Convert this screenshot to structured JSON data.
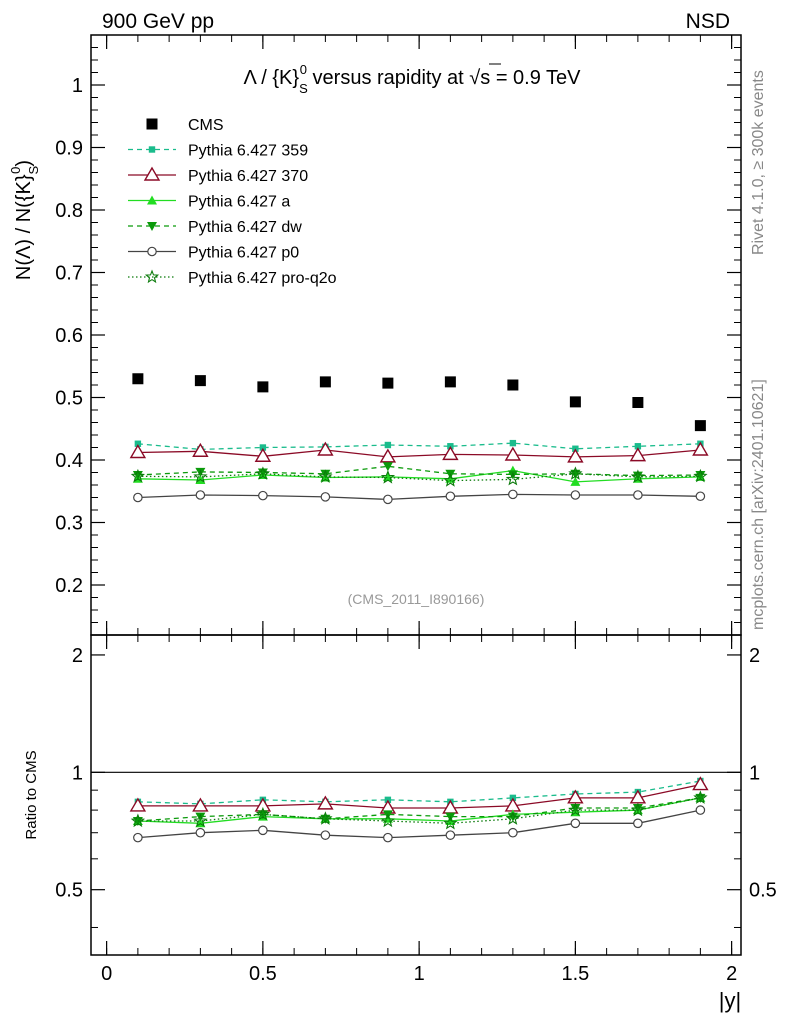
{
  "chart_data": {
    "type": "scatter",
    "header_left": "900 GeV pp",
    "header_right": "NSD",
    "title": "Λ / {K}S0 versus rapidity at √s = 0.9 TeV",
    "title_parts": {
      "pre": "Λ / {K}",
      "sub": "S",
      "sup": "0",
      "mid": " versus rapidity at ",
      "sqrt": "√",
      "s": "s",
      "post": " = 0.9 TeV"
    },
    "ylabel_parts": {
      "pre": "N(Λ)  /  N({K}",
      "sub": "S",
      "sup": "0",
      "post": ")"
    },
    "ratio_ylabel": "Ratio to CMS",
    "xlabel": "|y|",
    "analysis_tag": "(CMS_2011_I890166)",
    "side_label_top": "Rivet 4.1.0, ≥ 300k events",
    "side_label_bottom": "mcplots.cern.ch [arXiv:2401.10621]",
    "xlim": [
      -0.05,
      2.03
    ],
    "ylim": [
      0.12,
      1.08
    ],
    "ratio_ylim": [
      0.34,
      2.25
    ],
    "x_ticks": [
      "0",
      "0.5",
      "1",
      "1.5",
      "2"
    ],
    "x_tick_values": [
      0,
      0.5,
      1,
      1.5,
      2
    ],
    "y_ticks": [
      "0.2",
      "0.3",
      "0.4",
      "0.5",
      "0.6",
      "0.7",
      "0.8",
      "0.9",
      "1"
    ],
    "y_tick_values": [
      0.2,
      0.3,
      0.4,
      0.5,
      0.6,
      0.7,
      0.8,
      0.9,
      1.0
    ],
    "ratio_ticks": [
      "0.5",
      "1",
      "2"
    ],
    "ratio_tick_values": [
      0.5,
      1,
      2
    ],
    "x": [
      0.1,
      0.3,
      0.5,
      0.7,
      0.9,
      1.1,
      1.3,
      1.5,
      1.7,
      1.9
    ],
    "series": [
      {
        "name": "CMS",
        "color": "#000000",
        "marker": "square",
        "line": "none",
        "values": [
          0.53,
          0.527,
          0.517,
          0.525,
          0.523,
          0.525,
          0.52,
          0.493,
          0.492,
          0.455
        ]
      },
      {
        "name": "Pythia 6.427 359",
        "color": "#1abc8c",
        "marker": "smallsquare",
        "line": "dashed",
        "values": [
          0.426,
          0.417,
          0.42,
          0.421,
          0.424,
          0.422,
          0.427,
          0.418,
          0.422,
          0.426
        ]
      },
      {
        "name": "Pythia 6.427 370",
        "color": "#8b0a26",
        "marker": "triangle-open",
        "line": "solid",
        "values": [
          0.412,
          0.414,
          0.406,
          0.416,
          0.405,
          0.409,
          0.408,
          0.405,
          0.407,
          0.416
        ]
      },
      {
        "name": "Pythia 6.427 a",
        "color": "#22dd22",
        "marker": "triangle-up",
        "line": "solid",
        "values": [
          0.37,
          0.368,
          0.376,
          0.372,
          0.373,
          0.37,
          0.383,
          0.365,
          0.37,
          0.373
        ]
      },
      {
        "name": "Pythia 6.427 dw",
        "color": "#0a9a0a",
        "marker": "triangle-down",
        "line": "dashed",
        "values": [
          0.376,
          0.381,
          0.38,
          0.378,
          0.39,
          0.378,
          0.377,
          0.378,
          0.375,
          0.376
        ]
      },
      {
        "name": "Pythia 6.427 p0",
        "color": "#444444",
        "marker": "circle-open",
        "line": "solid",
        "values": [
          0.34,
          0.344,
          0.343,
          0.341,
          0.337,
          0.342,
          0.345,
          0.344,
          0.344,
          0.342
        ]
      },
      {
        "name": "Pythia 6.427 pro-q2o",
        "color": "#0a7a0a",
        "marker": "star",
        "line": "dotted",
        "values": [
          0.374,
          0.373,
          0.378,
          0.373,
          0.372,
          0.367,
          0.369,
          0.378,
          0.373,
          0.374
        ]
      }
    ],
    "ratio_series": [
      {
        "name": "Pythia 6.427 359",
        "values": [
          0.84,
          0.83,
          0.85,
          0.84,
          0.85,
          0.84,
          0.86,
          0.88,
          0.89,
          0.95
        ]
      },
      {
        "name": "Pythia 6.427 370",
        "values": [
          0.82,
          0.82,
          0.82,
          0.83,
          0.81,
          0.81,
          0.82,
          0.86,
          0.86,
          0.93
        ]
      },
      {
        "name": "Pythia 6.427 a",
        "values": [
          0.75,
          0.74,
          0.77,
          0.76,
          0.76,
          0.75,
          0.78,
          0.79,
          0.8,
          0.86
        ]
      },
      {
        "name": "Pythia 6.427 dw",
        "values": [
          0.75,
          0.77,
          0.78,
          0.76,
          0.78,
          0.77,
          0.77,
          0.81,
          0.81,
          0.86
        ]
      },
      {
        "name": "Pythia 6.427 p0",
        "values": [
          0.68,
          0.7,
          0.71,
          0.69,
          0.68,
          0.69,
          0.7,
          0.74,
          0.74,
          0.8
        ]
      },
      {
        "name": "Pythia 6.427 pro-q2o",
        "values": [
          0.75,
          0.75,
          0.78,
          0.76,
          0.75,
          0.74,
          0.76,
          0.8,
          0.8,
          0.86
        ]
      }
    ]
  }
}
